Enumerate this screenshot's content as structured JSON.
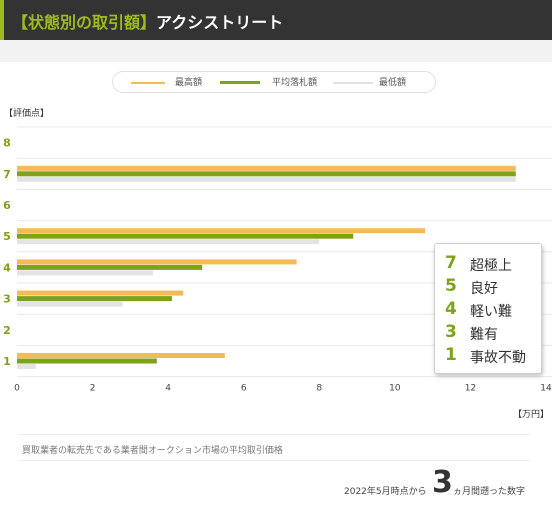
{
  "header": {
    "tag": "【状態別の取引額】",
    "name": "アクシストリート"
  },
  "units": {
    "y": "【評価点】",
    "x": "【万円】"
  },
  "colors": {
    "max": "#f5b955",
    "avg": "#7ea219",
    "min": "#e3e3e3",
    "accent": "#9bbb1e"
  },
  "chart_data": {
    "type": "bar",
    "orientation": "horizontal",
    "categories": [
      "8",
      "7",
      "6",
      "5",
      "4",
      "3",
      "2",
      "1"
    ],
    "series": [
      {
        "name": "最高額",
        "values": [
          null,
          13.2,
          null,
          10.8,
          7.4,
          4.4,
          null,
          5.5
        ]
      },
      {
        "name": "平均落札額",
        "values": [
          null,
          13.2,
          null,
          8.9,
          4.9,
          4.1,
          null,
          3.7
        ]
      },
      {
        "name": "最低額",
        "values": [
          null,
          13.2,
          null,
          8.0,
          3.6,
          2.8,
          null,
          0.5
        ]
      }
    ],
    "xlim": [
      0,
      14
    ],
    "xticks": [
      "0",
      "2",
      "4",
      "6",
      "8",
      "10",
      "12",
      "14"
    ],
    "xlabel": "【万円】",
    "ylabel": "【評価点】",
    "grid": true,
    "legend": "top-center"
  },
  "score_legend": [
    {
      "num": "7",
      "desc": "超極上"
    },
    {
      "num": "5",
      "desc": "良好"
    },
    {
      "num": "4",
      "desc": "軽い難"
    },
    {
      "num": "3",
      "desc": "難有"
    },
    {
      "num": "1",
      "desc": "事故不動"
    }
  ],
  "note": "買取業者の転売先である業者間オークション市場の平均取引価格",
  "period": {
    "pre": "2022年5月時点から",
    "big": "3",
    "post": "ヵ月間遡った数字"
  }
}
